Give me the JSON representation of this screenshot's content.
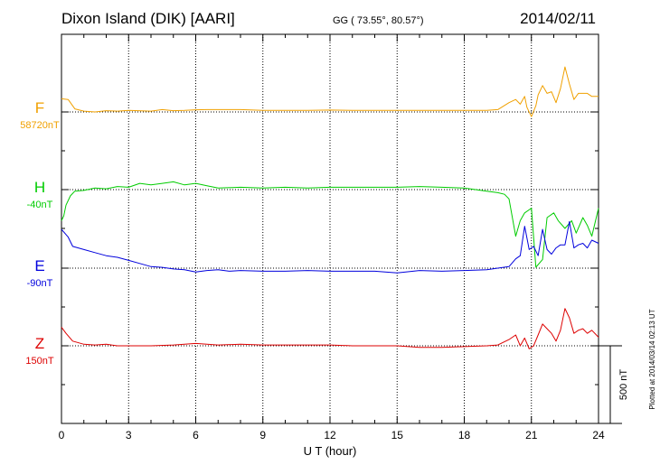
{
  "header": {
    "station": "Dixon Island (DIK)  [AARI]",
    "coords": "GG ( 73.55°,  80.57°)",
    "date": "2014/02/11"
  },
  "side_note": "Plotted at 2014/03/14 02:13 UT",
  "chart_data": {
    "type": "line",
    "title": "Dixon Island (DIK)  [AARI]",
    "xlabel": "U T (hour)",
    "ylabel": "",
    "xlim": [
      0,
      24
    ],
    "x_ticks": [
      "0",
      "3",
      "6",
      "9",
      "12",
      "15",
      "18",
      "21",
      "24"
    ],
    "scale_bar_label": "500 nT",
    "scale_bar_nT": 500,
    "grid": true,
    "series": [
      {
        "name": "F",
        "baseline": "58720nT",
        "color": "#f0a000",
        "x": [
          0,
          0.3,
          0.6,
          1,
          1.5,
          2,
          2.5,
          3,
          4,
          4.5,
          5,
          5.5,
          6,
          6.5,
          7,
          8,
          9,
          10,
          11,
          12,
          13,
          14,
          15,
          16,
          17,
          18,
          19,
          19.5,
          20,
          20.3,
          20.5,
          20.7,
          20.8,
          21,
          21.2,
          21.3,
          21.5,
          21.7,
          21.9,
          22.1,
          22.3,
          22.5,
          22.7,
          22.9,
          23.1,
          23.3,
          23.5,
          23.7,
          24
        ],
        "values": [
          85,
          80,
          20,
          5,
          0,
          8,
          5,
          10,
          5,
          15,
          8,
          10,
          14,
          15,
          15,
          15,
          10,
          10,
          10,
          12,
          10,
          10,
          10,
          10,
          10,
          10,
          10,
          15,
          60,
          80,
          50,
          100,
          30,
          -30,
          40,
          110,
          170,
          120,
          130,
          60,
          150,
          290,
          180,
          80,
          120,
          120,
          120,
          100,
          100
        ]
      },
      {
        "name": "H",
        "baseline": "-40nT",
        "color": "#00cc00",
        "x": [
          0,
          0.1,
          0.2,
          0.4,
          0.6,
          1,
          1.5,
          2,
          2.5,
          3,
          3.5,
          4,
          4.5,
          5,
          5.5,
          6,
          6.5,
          7,
          8,
          9,
          10,
          11,
          12,
          13,
          14,
          15,
          16,
          17,
          18,
          19,
          19.5,
          19.8,
          20,
          20.3,
          20.5,
          20.7,
          21,
          21.2,
          21.5,
          21.7,
          22,
          22.2,
          22.5,
          22.8,
          23,
          23.3,
          23.5,
          23.7,
          24
        ],
        "values": [
          -200,
          -170,
          -100,
          -40,
          -10,
          -5,
          10,
          5,
          20,
          15,
          40,
          30,
          40,
          50,
          30,
          40,
          25,
          10,
          15,
          10,
          15,
          10,
          15,
          15,
          15,
          15,
          20,
          15,
          10,
          -10,
          -20,
          -30,
          -60,
          -300,
          -200,
          -150,
          -120,
          -500,
          -450,
          -180,
          -150,
          -200,
          -250,
          -200,
          -280,
          -180,
          -230,
          -300,
          -120
        ]
      },
      {
        "name": "E",
        "baseline": "-90nT",
        "color": "#0000dd",
        "x": [
          0,
          0.3,
          0.5,
          1,
          1.5,
          2,
          2.5,
          3,
          3.5,
          4,
          4.5,
          5,
          5.5,
          6,
          6.5,
          7,
          7.5,
          8,
          9,
          10,
          11,
          12,
          13,
          14,
          15,
          16,
          17,
          18,
          19,
          19.5,
          20,
          20.3,
          20.5,
          20.7,
          20.9,
          21.1,
          21.3,
          21.5,
          21.7,
          21.9,
          22.1,
          22.3,
          22.5,
          22.7,
          22.9,
          23.1,
          23.3,
          23.5,
          23.7,
          24
        ],
        "values": [
          250,
          200,
          140,
          120,
          100,
          80,
          70,
          50,
          30,
          10,
          5,
          -5,
          -10,
          -25,
          -15,
          -10,
          -20,
          -15,
          -20,
          -20,
          -15,
          -20,
          -20,
          -20,
          -30,
          -15,
          -20,
          -15,
          -10,
          0,
          10,
          60,
          80,
          270,
          120,
          140,
          80,
          250,
          120,
          90,
          130,
          150,
          150,
          300,
          130,
          150,
          160,
          130,
          180,
          160
        ]
      },
      {
        "name": "Z",
        "baseline": "150nT",
        "color": "#dd0000",
        "x": [
          0,
          0.2,
          0.5,
          1,
          1.5,
          2,
          2.5,
          3,
          4,
          5,
          5.5,
          6,
          6.5,
          7,
          8,
          9,
          10,
          11,
          12,
          13,
          14,
          15,
          16,
          17,
          18,
          19,
          19.5,
          20,
          20.3,
          20.5,
          20.7,
          20.9,
          21.1,
          21.3,
          21.5,
          21.7,
          21.9,
          22.1,
          22.3,
          22.5,
          22.7,
          22.9,
          23.1,
          23.3,
          23.5,
          23.7,
          24
        ],
        "values": [
          120,
          80,
          30,
          10,
          5,
          10,
          0,
          0,
          0,
          5,
          10,
          15,
          10,
          5,
          10,
          5,
          5,
          5,
          5,
          0,
          0,
          0,
          -10,
          -10,
          -5,
          0,
          5,
          40,
          70,
          0,
          50,
          -20,
          0,
          70,
          140,
          110,
          80,
          30,
          100,
          240,
          180,
          80,
          100,
          110,
          80,
          100,
          55
        ]
      }
    ]
  }
}
